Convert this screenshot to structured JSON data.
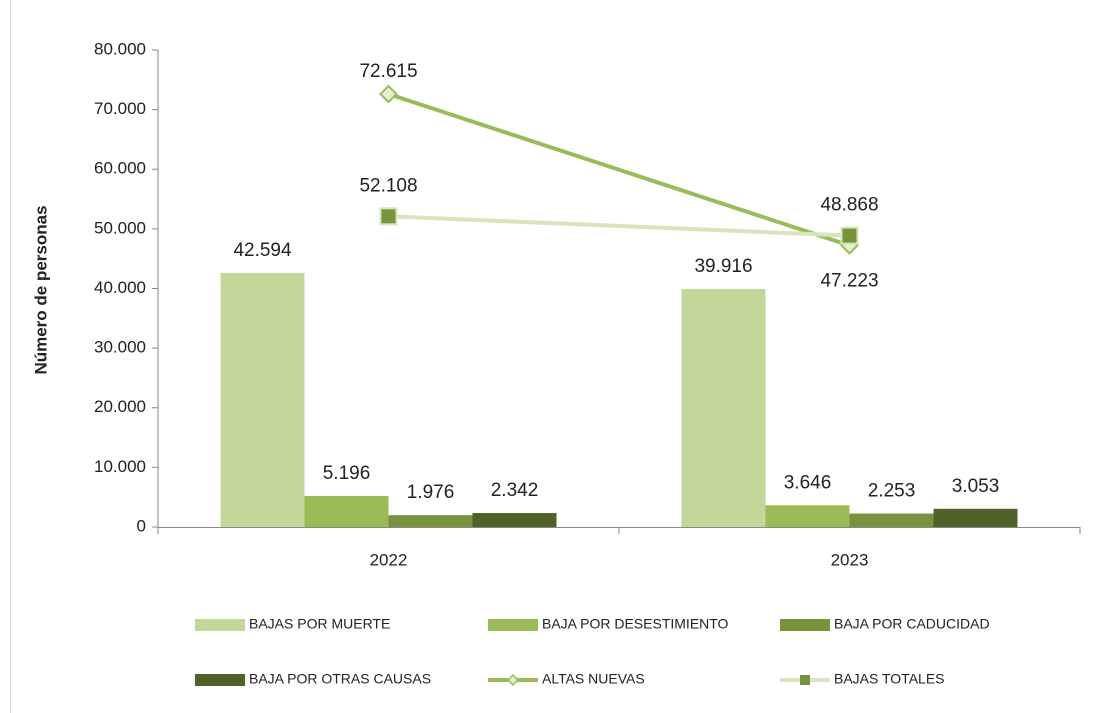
{
  "chart_data": {
    "type": "combo",
    "y_label": "Número de personas",
    "categories": [
      "2022",
      "2023"
    ],
    "ylim": [
      0,
      80000
    ],
    "yticks": [
      0,
      {
        "value": 10000,
        "label": "10.000"
      },
      {
        "value": 20000,
        "label": "20.000"
      },
      {
        "value": 30000,
        "label": "30.000"
      },
      {
        "value": 40000,
        "label": "40.000"
      },
      {
        "value": 50000,
        "label": "50.000"
      },
      {
        "value": 60000,
        "label": "60.000"
      },
      {
        "value": 70000,
        "label": "70.000"
      },
      {
        "value": 80000,
        "label": "80.000"
      }
    ],
    "grid": false,
    "legend": "bottom",
    "series": [
      {
        "name": "BAJAS POR MUERTE",
        "type": "bar",
        "color": "#c4d79b",
        "values": [
          42594,
          39916
        ],
        "value_labels": [
          "42.594",
          "39.916"
        ]
      },
      {
        "name": "BAJA POR DESESTIMIENTO",
        "type": "bar",
        "color": "#9bbb59",
        "values": [
          5196,
          3646
        ],
        "value_labels": [
          "5.196",
          "3.646"
        ]
      },
      {
        "name": "BAJA POR CADUCIDAD",
        "type": "bar",
        "color": "#77933c",
        "values": [
          1976,
          2253
        ],
        "value_labels": [
          "1.976",
          "2.253"
        ]
      },
      {
        "name": "BAJA POR OTRAS CAUSAS",
        "type": "bar",
        "color": "#4f6228",
        "values": [
          2342,
          3053
        ],
        "value_labels": [
          "2.342",
          "3.053"
        ]
      },
      {
        "name": "ALTAS NUEVAS",
        "type": "line",
        "marker": "diamond",
        "color": "#9bbb59",
        "values": [
          72615,
          47223
        ],
        "value_labels": [
          "72.615",
          "47.223"
        ]
      },
      {
        "name": "BAJAS TOTALES",
        "type": "line",
        "marker": "square",
        "color": "#d7e4bd",
        "marker_color": "#77933c",
        "values": [
          52108,
          48868
        ],
        "value_labels": [
          "52.108",
          "48.868"
        ]
      }
    ]
  }
}
